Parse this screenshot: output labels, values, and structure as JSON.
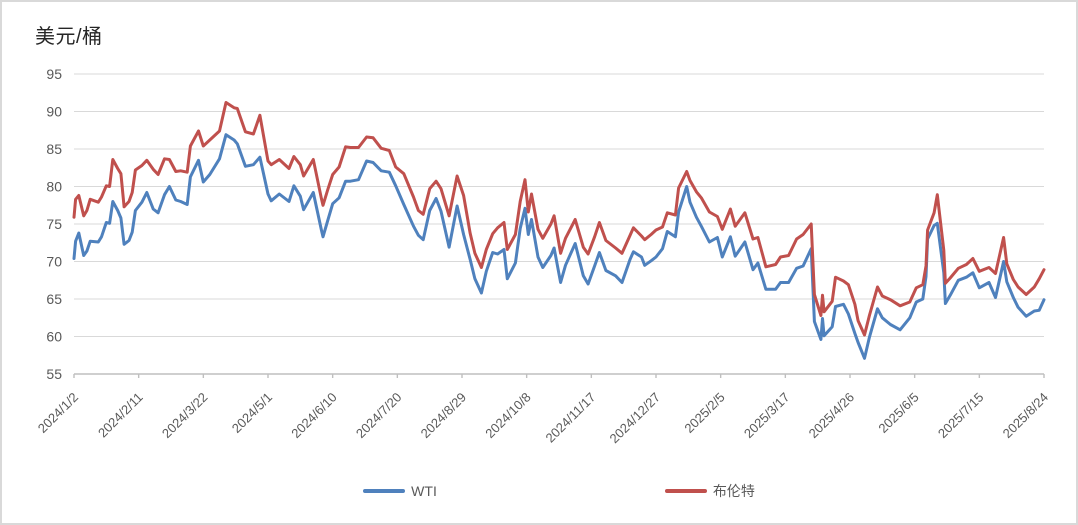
{
  "chart": {
    "title": "美元/桶",
    "legend": {
      "wti_label": "WTI",
      "brent_label": "布伦特"
    }
  },
  "chart_data": {
    "type": "line",
    "title": "美元/桶",
    "ylabel": "美元/桶",
    "unit": "USD per barrel",
    "grid": "horizontal",
    "legend_position": "bottom",
    "ylim": [
      55,
      95
    ],
    "y_ticks": [
      55,
      60,
      65,
      70,
      75,
      80,
      85,
      90,
      95
    ],
    "x_tick_labels": [
      "2024/1/2",
      "2024/2/11",
      "2024/3/22",
      "2024/5/1",
      "2024/6/10",
      "2024/7/20",
      "2024/8/29",
      "2024/10/8",
      "2024/11/17",
      "2024/12/27",
      "2025/2/5",
      "2025/3/17",
      "2025/4/26",
      "2025/6/5",
      "2025/7/15",
      "2025/8/24"
    ],
    "x_tick_days": [
      0,
      40,
      80,
      120,
      160,
      200,
      240,
      280,
      320,
      360,
      400,
      440,
      480,
      520,
      560,
      600
    ],
    "x_axis_note": "x values are day offsets from 2024/1/2",
    "x_days": [
      0,
      1,
      3,
      6,
      8,
      10,
      15,
      17,
      20,
      22,
      24,
      27,
      29,
      31,
      34,
      36,
      38,
      42,
      45,
      49,
      52,
      56,
      59,
      63,
      66,
      70,
      72,
      77,
      80,
      84,
      90,
      94,
      99,
      101,
      106,
      111,
      115,
      120,
      122,
      127,
      133,
      136,
      140,
      142,
      148,
      153,
      154,
      157,
      160,
      164,
      168,
      171,
      176,
      181,
      185,
      190,
      195,
      199,
      204,
      210,
      213,
      216,
      220,
      224,
      227,
      232,
      237,
      241,
      245,
      248,
      252,
      255,
      259,
      262,
      266,
      268,
      273,
      276,
      279,
      281,
      283,
      287,
      290,
      295,
      297,
      301,
      304,
      310,
      315,
      318,
      322,
      325,
      329,
      335,
      339,
      344,
      346,
      351,
      353,
      357,
      360,
      364,
      367,
      372,
      374,
      379,
      381,
      385,
      388,
      393,
      398,
      401,
      406,
      409,
      415,
      420,
      423,
      428,
      434,
      437,
      442,
      447,
      451,
      456,
      458,
      462,
      463,
      464,
      469,
      471,
      476,
      479,
      483,
      485,
      489,
      492,
      497,
      500,
      505,
      511,
      517,
      521,
      525,
      527,
      528,
      532,
      534,
      538,
      539,
      542,
      547,
      552,
      556,
      560,
      566,
      570,
      575,
      577,
      581,
      584,
      589,
      594,
      597,
      600
    ],
    "series": [
      {
        "name": "WTI",
        "color": "#4F81BD",
        "values": [
          70.4,
          72.7,
          73.8,
          70.8,
          71.4,
          72.7,
          72.6,
          73.3,
          75.2,
          75.1,
          78.0,
          76.8,
          75.8,
          72.3,
          72.8,
          73.9,
          76.8,
          77.9,
          79.2,
          77.0,
          76.5,
          78.9,
          80.0,
          78.2,
          78.0,
          77.6,
          81.3,
          83.5,
          80.6,
          81.6,
          83.7,
          86.9,
          86.2,
          85.7,
          82.7,
          82.9,
          83.9,
          79.0,
          78.1,
          79.0,
          78.0,
          80.1,
          78.7,
          76.9,
          79.2,
          74.2,
          73.3,
          75.5,
          77.7,
          78.5,
          80.7,
          80.7,
          80.9,
          83.4,
          83.2,
          82.1,
          81.9,
          80.1,
          77.6,
          74.7,
          73.5,
          72.9,
          76.8,
          78.4,
          76.7,
          71.9,
          77.4,
          73.6,
          70.3,
          67.7,
          65.8,
          68.7,
          71.2,
          71.0,
          71.6,
          67.7,
          69.8,
          74.4,
          77.1,
          73.6,
          75.6,
          70.6,
          69.2,
          70.8,
          71.8,
          67.2,
          69.5,
          72.4,
          68.1,
          67.0,
          69.4,
          71.2,
          68.8,
          68.1,
          67.2,
          70.3,
          71.3,
          70.6,
          69.5,
          70.1,
          70.6,
          71.7,
          74.0,
          73.3,
          76.6,
          80.0,
          77.9,
          75.9,
          74.7,
          72.6,
          73.2,
          70.6,
          73.3,
          70.7,
          72.6,
          68.9,
          69.8,
          66.3,
          66.3,
          67.2,
          67.2,
          69.1,
          69.4,
          71.7,
          62.0,
          59.6,
          62.4,
          60.1,
          61.3,
          64.0,
          64.3,
          63.0,
          60.4,
          59.2,
          57.1,
          59.9,
          63.7,
          62.5,
          61.6,
          60.9,
          62.5,
          64.6,
          65.0,
          68.0,
          73.0,
          74.8,
          75.1,
          68.5,
          64.4,
          65.5,
          67.5,
          67.9,
          68.5,
          66.5,
          67.2,
          65.2,
          70.0,
          67.3,
          65.2,
          63.9,
          62.7,
          63.4,
          63.5,
          64.9
        ]
      },
      {
        "name": "布伦特",
        "color": "#C0504D",
        "values": [
          75.9,
          78.3,
          78.8,
          76.1,
          76.8,
          78.3,
          77.9,
          78.6,
          80.1,
          80.0,
          83.6,
          82.4,
          81.7,
          77.3,
          78.0,
          79.2,
          82.2,
          82.8,
          83.5,
          82.3,
          81.6,
          83.7,
          83.6,
          82.0,
          82.1,
          81.9,
          85.4,
          87.4,
          85.4,
          86.2,
          87.4,
          91.2,
          90.5,
          90.4,
          87.3,
          87.0,
          89.5,
          83.4,
          82.9,
          83.6,
          82.4,
          84.0,
          82.9,
          81.4,
          83.6,
          78.4,
          77.5,
          79.6,
          81.6,
          82.6,
          85.3,
          85.2,
          85.2,
          86.6,
          86.5,
          85.1,
          84.8,
          82.6,
          81.7,
          78.6,
          76.8,
          76.3,
          79.7,
          80.7,
          79.7,
          76.1,
          81.4,
          78.8,
          73.8,
          71.1,
          69.2,
          71.6,
          73.7,
          74.5,
          75.2,
          71.6,
          73.6,
          78.0,
          80.9,
          76.6,
          79.0,
          74.3,
          73.1,
          75.0,
          76.1,
          71.1,
          73.1,
          75.6,
          71.9,
          71.0,
          73.3,
          75.2,
          72.8,
          71.8,
          71.1,
          73.5,
          74.5,
          73.4,
          72.9,
          73.6,
          74.2,
          74.6,
          76.5,
          76.2,
          79.8,
          82.0,
          80.8,
          79.3,
          78.5,
          76.6,
          76.0,
          74.3,
          77.0,
          74.7,
          76.5,
          73.0,
          73.2,
          69.3,
          69.6,
          70.6,
          70.8,
          73.0,
          73.6,
          75.0,
          65.6,
          62.8,
          65.5,
          63.3,
          64.7,
          67.9,
          67.4,
          66.9,
          64.3,
          62.1,
          60.2,
          62.8,
          66.6,
          65.4,
          64.9,
          64.1,
          64.6,
          66.5,
          66.9,
          69.4,
          74.2,
          76.5,
          78.9,
          71.5,
          67.1,
          67.8,
          69.1,
          69.6,
          70.4,
          68.7,
          69.2,
          68.4,
          73.2,
          69.7,
          67.6,
          66.6,
          65.6,
          66.6,
          67.7,
          68.9
        ]
      }
    ],
    "colors": {
      "wti": "#4F81BD",
      "brent": "#C0504D",
      "gridline": "#D9D9D9",
      "axis": "#BFBFBF",
      "tick_text": "#595959"
    }
  }
}
